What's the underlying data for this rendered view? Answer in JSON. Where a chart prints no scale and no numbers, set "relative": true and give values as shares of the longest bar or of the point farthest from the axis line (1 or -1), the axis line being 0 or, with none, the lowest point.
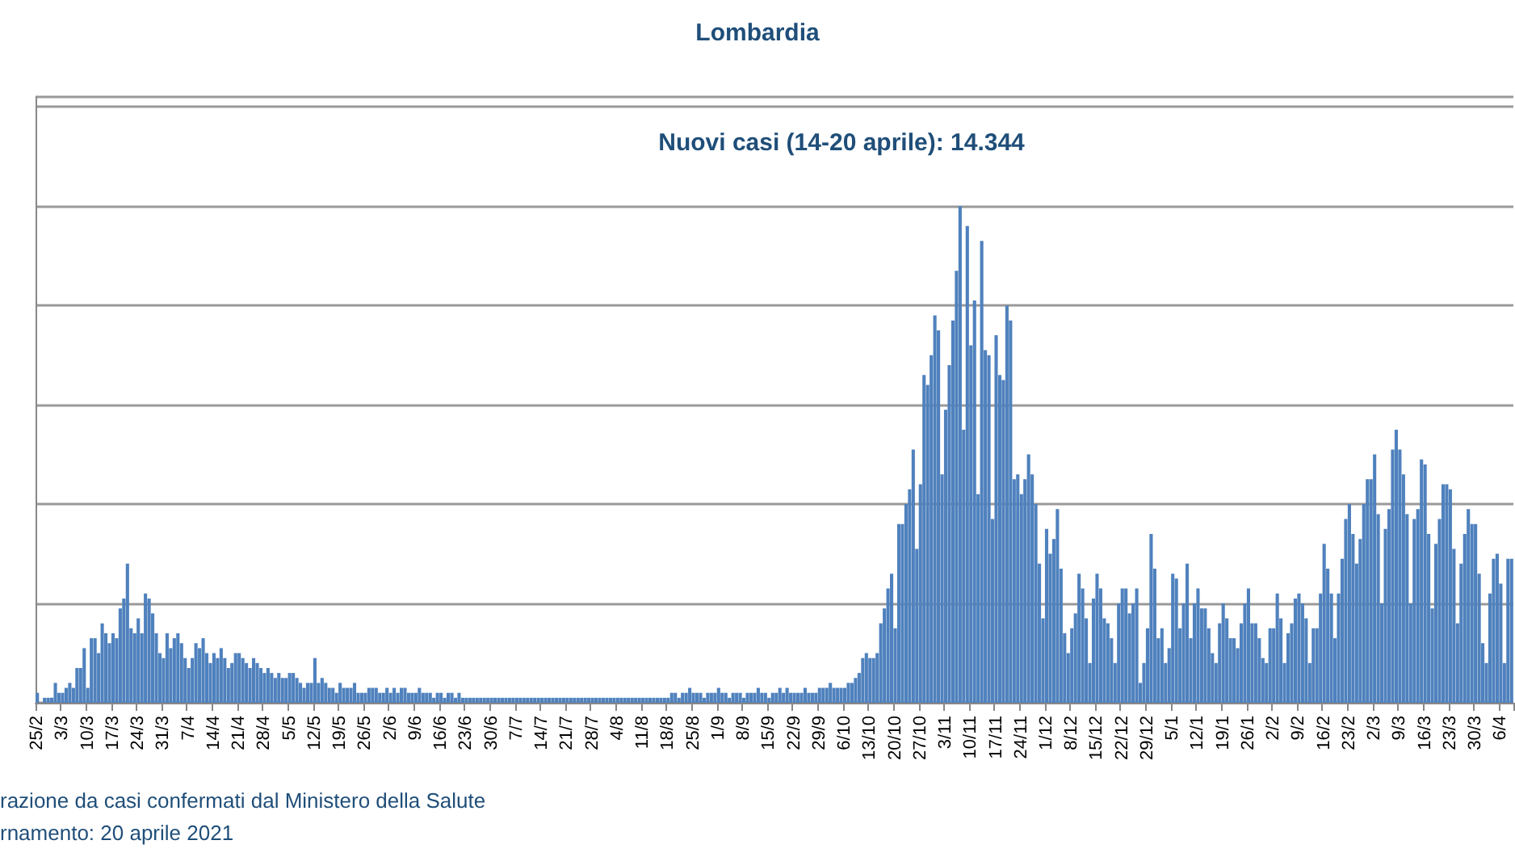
{
  "chart_data": {
    "type": "bar",
    "title": "Lombardia",
    "subtitle": "Nuovi casi (14-20 aprile): 14.344",
    "relative": true,
    "color": "#4f81bd",
    "grid": "y",
    "annotations": [
      "razione da casi confermati dal Ministero della Salute",
      "rnamento: 20 aprile 2021"
    ],
    "categories": [
      "25/2",
      null,
      null,
      null,
      null,
      null,
      null,
      "3/3",
      null,
      null,
      null,
      null,
      null,
      null,
      "10/3",
      null,
      null,
      null,
      null,
      null,
      null,
      "17/3",
      null,
      null,
      null,
      null,
      null,
      null,
      "24/3",
      null,
      null,
      null,
      null,
      null,
      null,
      "31/3",
      null,
      null,
      null,
      null,
      null,
      null,
      "7/4",
      null,
      null,
      null,
      null,
      null,
      null,
      "14/4",
      null,
      null,
      null,
      null,
      null,
      null,
      "21/4",
      null,
      null,
      null,
      null,
      null,
      null,
      "28/4",
      null,
      null,
      null,
      null,
      null,
      null,
      "5/5",
      null,
      null,
      null,
      null,
      null,
      null,
      "12/5",
      null,
      null,
      null,
      null,
      null,
      null,
      "19/5",
      null,
      null,
      null,
      null,
      null,
      null,
      "26/5",
      null,
      null,
      null,
      null,
      null,
      null,
      "2/6",
      null,
      null,
      null,
      null,
      null,
      null,
      "9/6",
      null,
      null,
      null,
      null,
      null,
      null,
      "16/6",
      null,
      null,
      null,
      null,
      null,
      null,
      "23/6",
      null,
      null,
      null,
      null,
      null,
      null,
      "30/6",
      null,
      null,
      null,
      null,
      null,
      null,
      "7/7",
      null,
      null,
      null,
      null,
      null,
      null,
      "14/7",
      null,
      null,
      null,
      null,
      null,
      null,
      "21/7",
      null,
      null,
      null,
      null,
      null,
      null,
      "28/7",
      null,
      null,
      null,
      null,
      null,
      null,
      "4/8",
      null,
      null,
      null,
      null,
      null,
      null,
      "11/8",
      null,
      null,
      null,
      null,
      null,
      null,
      "18/8",
      null,
      null,
      null,
      null,
      null,
      null,
      "25/8",
      null,
      null,
      null,
      null,
      null,
      null,
      "1/9",
      null,
      null,
      null,
      null,
      null,
      null,
      "8/9",
      null,
      null,
      null,
      null,
      null,
      null,
      "15/9",
      null,
      null,
      null,
      null,
      null,
      null,
      "22/9",
      null,
      null,
      null,
      null,
      null,
      null,
      "29/9",
      null,
      null,
      null,
      null,
      null,
      null,
      "6/10",
      null,
      null,
      null,
      null,
      null,
      null,
      "13/10",
      null,
      null,
      null,
      null,
      null,
      null,
      "20/10",
      null,
      null,
      null,
      null,
      null,
      null,
      "27/10",
      null,
      null,
      null,
      null,
      null,
      null,
      "3/11",
      null,
      null,
      null,
      null,
      null,
      null,
      "10/11",
      null,
      null,
      null,
      null,
      null,
      null,
      "17/11",
      null,
      null,
      null,
      null,
      null,
      null,
      "24/11",
      null,
      null,
      null,
      null,
      null,
      null,
      "1/12",
      null,
      null,
      null,
      null,
      null,
      null,
      "8/12",
      null,
      null,
      null,
      null,
      null,
      null,
      "15/12",
      null,
      null,
      null,
      null,
      null,
      null,
      "22/12",
      null,
      null,
      null,
      null,
      null,
      null,
      "29/12",
      null,
      null,
      null,
      null,
      null,
      null,
      "5/1",
      null,
      null,
      null,
      null,
      null,
      null,
      "12/1",
      null,
      null,
      null,
      null,
      null,
      null,
      "19/1",
      null,
      null,
      null,
      null,
      null,
      null,
      "26/1",
      null,
      null,
      null,
      null,
      null,
      null,
      "2/2",
      null,
      null,
      null,
      null,
      null,
      null,
      "9/2",
      null,
      null,
      null,
      null,
      null,
      null,
      "16/2",
      null,
      null,
      null,
      null,
      null,
      null,
      "23/2",
      null,
      null,
      null,
      null,
      null,
      null,
      "2/3",
      null,
      null,
      null,
      null,
      null,
      null,
      "9/3",
      null,
      null,
      null,
      null,
      null,
      null,
      "16/3",
      null,
      null,
      null,
      null,
      null,
      null,
      "23/3",
      null,
      null,
      null,
      null,
      null,
      null,
      "30/3",
      null,
      null,
      null,
      null,
      null,
      null,
      "6/4",
      null,
      null,
      null
    ],
    "values": [
      0.02,
      0.0,
      0.01,
      0.01,
      0.01,
      0.04,
      0.02,
      0.02,
      0.03,
      0.04,
      0.03,
      0.07,
      0.07,
      0.11,
      0.03,
      0.13,
      0.13,
      0.1,
      0.16,
      0.14,
      0.12,
      0.14,
      0.13,
      0.19,
      0.21,
      0.28,
      0.15,
      0.14,
      0.17,
      0.14,
      0.22,
      0.21,
      0.18,
      0.14,
      0.1,
      0.09,
      0.14,
      0.11,
      0.13,
      0.14,
      0.12,
      0.09,
      0.07,
      0.09,
      0.12,
      0.11,
      0.13,
      0.1,
      0.08,
      0.1,
      0.09,
      0.11,
      0.09,
      0.07,
      0.08,
      0.1,
      0.1,
      0.09,
      0.08,
      0.07,
      0.09,
      0.08,
      0.07,
      0.06,
      0.07,
      0.06,
      0.05,
      0.06,
      0.05,
      0.05,
      0.06,
      0.06,
      0.05,
      0.04,
      0.03,
      0.04,
      0.04,
      0.09,
      0.04,
      0.05,
      0.04,
      0.03,
      0.03,
      0.02,
      0.04,
      0.03,
      0.03,
      0.03,
      0.04,
      0.02,
      0.02,
      0.02,
      0.03,
      0.03,
      0.03,
      0.02,
      0.02,
      0.03,
      0.02,
      0.03,
      0.02,
      0.03,
      0.03,
      0.02,
      0.02,
      0.02,
      0.03,
      0.02,
      0.02,
      0.02,
      0.01,
      0.02,
      0.02,
      0.01,
      0.02,
      0.02,
      0.01,
      0.02,
      0.01,
      0.01,
      0.01,
      0.01,
      0.01,
      0.01,
      0.01,
      0.01,
      0.01,
      0.01,
      0.01,
      0.01,
      0.01,
      0.01,
      0.01,
      0.01,
      0.01,
      0.01,
      0.01,
      0.01,
      0.01,
      0.01,
      0.01,
      0.01,
      0.01,
      0.01,
      0.01,
      0.01,
      0.01,
      0.01,
      0.01,
      0.01,
      0.01,
      0.01,
      0.01,
      0.01,
      0.01,
      0.01,
      0.01,
      0.01,
      0.01,
      0.01,
      0.01,
      0.01,
      0.01,
      0.01,
      0.01,
      0.01,
      0.01,
      0.01,
      0.01,
      0.01,
      0.01,
      0.01,
      0.01,
      0.01,
      0.01,
      0.01,
      0.02,
      0.02,
      0.01,
      0.02,
      0.02,
      0.03,
      0.02,
      0.02,
      0.02,
      0.01,
      0.02,
      0.02,
      0.02,
      0.03,
      0.02,
      0.02,
      0.01,
      0.02,
      0.02,
      0.02,
      0.01,
      0.02,
      0.02,
      0.02,
      0.03,
      0.02,
      0.02,
      0.01,
      0.02,
      0.02,
      0.03,
      0.02,
      0.03,
      0.02,
      0.02,
      0.02,
      0.02,
      0.03,
      0.02,
      0.02,
      0.02,
      0.03,
      0.03,
      0.03,
      0.04,
      0.03,
      0.03,
      0.03,
      0.03,
      0.04,
      0.04,
      0.05,
      0.06,
      0.09,
      0.1,
      0.09,
      0.09,
      0.1,
      0.16,
      0.19,
      0.23,
      0.26,
      0.15,
      0.36,
      0.36,
      0.4,
      0.43,
      0.51,
      0.31,
      0.44,
      0.66,
      0.64,
      0.7,
      0.78,
      0.75,
      0.46,
      0.59,
      0.68,
      0.77,
      0.87,
      1.0,
      0.55,
      0.96,
      0.72,
      0.81,
      0.42,
      0.93,
      0.71,
      0.7,
      0.37,
      0.74,
      0.66,
      0.65,
      0.8,
      0.77,
      0.45,
      0.46,
      0.42,
      0.45,
      0.5,
      0.46,
      0.4,
      0.28,
      0.17,
      0.35,
      0.3,
      0.33,
      0.39,
      0.27,
      0.14,
      0.1,
      0.15,
      0.18,
      0.26,
      0.23,
      0.17,
      0.08,
      0.21,
      0.26,
      0.23,
      0.17,
      0.16,
      0.13,
      0.08,
      0.2,
      0.23,
      0.23,
      0.18,
      0.2,
      0.23,
      0.04,
      0.08,
      0.15,
      0.34,
      0.27,
      0.13,
      0.15,
      0.08,
      0.11,
      0.26,
      0.25,
      0.15,
      0.2,
      0.28,
      0.13,
      0.2,
      0.23,
      0.19,
      0.19,
      0.15,
      0.1,
      0.08,
      0.16,
      0.2,
      0.17,
      0.13,
      0.13,
      0.11,
      0.16,
      0.2,
      0.23,
      0.16,
      0.16,
      0.13,
      0.09,
      0.08,
      0.15,
      0.15,
      0.22,
      0.17,
      0.08,
      0.14,
      0.16,
      0.21,
      0.22,
      0.2,
      0.17,
      0.08,
      0.15,
      0.15,
      0.22,
      0.32,
      0.27,
      0.22,
      0.13,
      0.22,
      0.29,
      0.37,
      0.4,
      0.34,
      0.28,
      0.33,
      0.4,
      0.45,
      0.45,
      0.5,
      0.38,
      0.2,
      0.35,
      0.39,
      0.51,
      0.55,
      0.51,
      0.46,
      0.38,
      0.2,
      0.37,
      0.39,
      0.49,
      0.48,
      0.34,
      0.19,
      0.32,
      0.37,
      0.44,
      0.44,
      0.43,
      0.31,
      0.16,
      0.28,
      0.34,
      0.39,
      0.36,
      0.36,
      0.26,
      0.12,
      0.08,
      0.22,
      0.29,
      0.3,
      0.24,
      0.08,
      0.29,
      0.29
    ]
  }
}
